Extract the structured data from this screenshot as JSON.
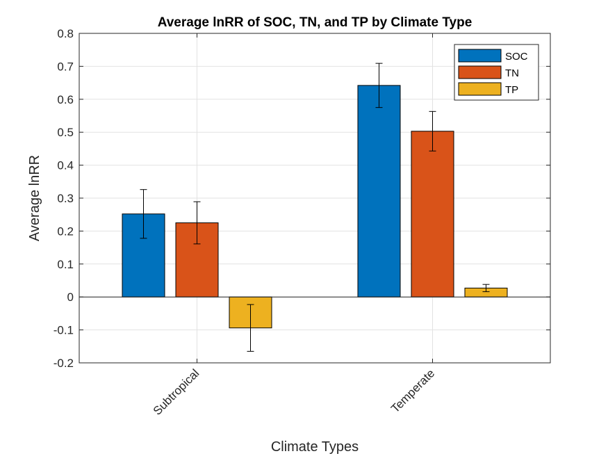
{
  "chart_data": {
    "type": "bar",
    "title": "Average lnRR of SOC, TN, and TP by Climate Type",
    "xlabel": "Climate Types",
    "ylabel": "Average lnRR",
    "categories": [
      "Subtropical",
      "Temperate"
    ],
    "ylim": [
      -0.2,
      0.8
    ],
    "yticks": [
      -0.2,
      -0.1,
      0,
      0.1,
      0.2,
      0.3,
      0.4,
      0.5,
      0.6,
      0.7,
      0.8
    ],
    "ytick_labels": [
      "-0.2",
      "-0.1",
      "0",
      "0.1",
      "0.2",
      "0.3",
      "0.4",
      "0.5",
      "0.6",
      "0.7",
      "0.8"
    ],
    "grid": true,
    "legend_position": "top-right",
    "series": [
      {
        "name": "SOC",
        "color": "#0072BD",
        "values": [
          0.252,
          0.642
        ],
        "errors": [
          0.074,
          0.067
        ]
      },
      {
        "name": "TN",
        "color": "#D95319",
        "values": [
          0.225,
          0.503
        ],
        "errors": [
          0.064,
          0.06
        ]
      },
      {
        "name": "TP",
        "color": "#EDB120",
        "values": [
          -0.094,
          0.027
        ],
        "errors": [
          0.071,
          0.011
        ]
      }
    ]
  }
}
